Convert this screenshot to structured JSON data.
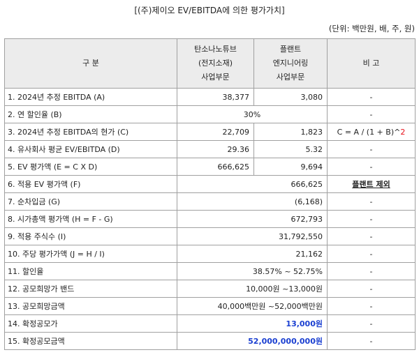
{
  "title": "[(주)제이오 EV/EBITDA에 의한 평가가치]",
  "unit": "(단위: 백만원, 배, 주, 원)",
  "header": {
    "col1": "구 분",
    "col2": [
      "탄소나노튜브",
      "(전지소재)",
      "사업부문"
    ],
    "col3": [
      "플랜트",
      "엔지니어링",
      "사업부문"
    ],
    "col4": "비 고"
  },
  "rows": [
    {
      "label": "1. 2024년 추정 EBITDA (A)",
      "c2": "38,377",
      "c3": "3,080",
      "note": "-"
    },
    {
      "label": "2. 연 할인율 (B)",
      "merged": "30%",
      "note": "-"
    },
    {
      "label": "3. 2024년 추정 EBITDA의 현가 (C)",
      "c2": "22,709",
      "c3": "1,823",
      "note": "C = A / (1 + B)^",
      "note_red": "2"
    },
    {
      "label": "4. 유사회사 평균 EV/EBITDA (D)",
      "c2": "29.36",
      "c3": "5.32",
      "note": "-"
    },
    {
      "label": "5. EV 평가액 (E = C X D)",
      "c2": "666,625",
      "c3": "9,694",
      "note": "-"
    },
    {
      "label": "6. 적용 EV 평가액 (F)",
      "merged": "666,625",
      "note": "플랜트 제외"
    },
    {
      "label": "7. 순차입금 (G)",
      "merged": "(6,168)",
      "note": "-"
    },
    {
      "label": "8. 시가총액 평가액 (H = F - G)",
      "merged": "672,793",
      "note": "-"
    },
    {
      "label": "9. 적용 주식수 (I)",
      "merged": "31,792,550",
      "note": "-"
    },
    {
      "label": "10. 주당 평가가액 (J = H / I)",
      "merged": "21,162",
      "note": "-"
    },
    {
      "label": "11. 할인율",
      "merged": "38.57% ~ 52.75%",
      "note": "-"
    },
    {
      "label": "12. 공모희망가 밴드",
      "merged": "10,000원 ~13,000원",
      "note": "-"
    },
    {
      "label": "13. 공모희망금액",
      "merged": "40,000백만원 ~52,000백만원",
      "note": "-"
    },
    {
      "label": "14. 확정공모가",
      "merged": "13,000원",
      "note": "-"
    },
    {
      "label": "15. 확정공모금액",
      "merged": "52,000,000,000원",
      "note": "-"
    }
  ]
}
